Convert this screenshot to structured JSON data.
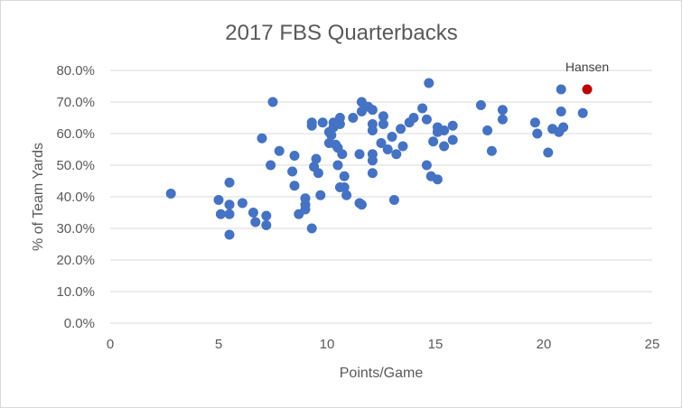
{
  "chart_data": {
    "type": "scatter",
    "title": "2017 FBS Quarterbacks",
    "xlabel": "Points/Game",
    "ylabel": "% of Team Yards",
    "xlim": [
      0,
      25
    ],
    "ylim": [
      0,
      0.8
    ],
    "x_ticks": [
      "0",
      "5",
      "10",
      "15",
      "20",
      "25"
    ],
    "y_ticks": [
      "0.0%",
      "10.0%",
      "20.0%",
      "30.0%",
      "40.0%",
      "50.0%",
      "60.0%",
      "70.0%",
      "80.0%"
    ],
    "grid": "horizontal",
    "series_color": "#4472c4",
    "highlight_color": "#c00000",
    "highlight": {
      "label": "Hansen",
      "x": 22.0,
      "y": 0.74
    },
    "points": [
      [
        2.8,
        0.41
      ],
      [
        5.0,
        0.39
      ],
      [
        5.1,
        0.345
      ],
      [
        5.5,
        0.445
      ],
      [
        5.5,
        0.375
      ],
      [
        5.5,
        0.345
      ],
      [
        5.5,
        0.28
      ],
      [
        6.1,
        0.38
      ],
      [
        6.6,
        0.35
      ],
      [
        6.7,
        0.32
      ],
      [
        7.0,
        0.585
      ],
      [
        7.2,
        0.31
      ],
      [
        7.2,
        0.34
      ],
      [
        7.4,
        0.5
      ],
      [
        7.5,
        0.7
      ],
      [
        7.8,
        0.545
      ],
      [
        8.4,
        0.48
      ],
      [
        8.5,
        0.435
      ],
      [
        8.5,
        0.53
      ],
      [
        8.7,
        0.345
      ],
      [
        9.0,
        0.395
      ],
      [
        9.0,
        0.375
      ],
      [
        9.0,
        0.36
      ],
      [
        9.3,
        0.635
      ],
      [
        9.3,
        0.625
      ],
      [
        9.3,
        0.3
      ],
      [
        9.4,
        0.495
      ],
      [
        9.5,
        0.52
      ],
      [
        9.6,
        0.475
      ],
      [
        9.7,
        0.405
      ],
      [
        9.8,
        0.635
      ],
      [
        10.1,
        0.605
      ],
      [
        10.1,
        0.57
      ],
      [
        10.2,
        0.595
      ],
      [
        10.3,
        0.635
      ],
      [
        10.3,
        0.62
      ],
      [
        10.4,
        0.565
      ],
      [
        10.5,
        0.555
      ],
      [
        10.5,
        0.5
      ],
      [
        10.6,
        0.65
      ],
      [
        10.6,
        0.63
      ],
      [
        10.6,
        0.43
      ],
      [
        10.7,
        0.535
      ],
      [
        10.8,
        0.465
      ],
      [
        10.8,
        0.43
      ],
      [
        10.9,
        0.405
      ],
      [
        11.2,
        0.65
      ],
      [
        11.5,
        0.535
      ],
      [
        11.5,
        0.38
      ],
      [
        11.6,
        0.375
      ],
      [
        11.6,
        0.7
      ],
      [
        11.6,
        0.67
      ],
      [
        11.9,
        0.685
      ],
      [
        12.1,
        0.675
      ],
      [
        12.1,
        0.63
      ],
      [
        12.1,
        0.61
      ],
      [
        12.1,
        0.535
      ],
      [
        12.1,
        0.515
      ],
      [
        12.1,
        0.475
      ],
      [
        12.5,
        0.57
      ],
      [
        12.6,
        0.655
      ],
      [
        12.6,
        0.63
      ],
      [
        12.8,
        0.55
      ],
      [
        13.0,
        0.59
      ],
      [
        13.1,
        0.39
      ],
      [
        13.2,
        0.535
      ],
      [
        13.4,
        0.615
      ],
      [
        13.5,
        0.56
      ],
      [
        13.8,
        0.635
      ],
      [
        14.0,
        0.65
      ],
      [
        14.4,
        0.68
      ],
      [
        14.6,
        0.645
      ],
      [
        14.6,
        0.5
      ],
      [
        14.7,
        0.76
      ],
      [
        14.8,
        0.465
      ],
      [
        14.9,
        0.575
      ],
      [
        15.1,
        0.62
      ],
      [
        15.1,
        0.605
      ],
      [
        15.1,
        0.455
      ],
      [
        15.4,
        0.61
      ],
      [
        15.4,
        0.56
      ],
      [
        15.8,
        0.625
      ],
      [
        15.8,
        0.58
      ],
      [
        17.1,
        0.69
      ],
      [
        17.4,
        0.61
      ],
      [
        17.6,
        0.545
      ],
      [
        18.1,
        0.675
      ],
      [
        18.1,
        0.645
      ],
      [
        19.6,
        0.635
      ],
      [
        19.7,
        0.6
      ],
      [
        20.2,
        0.54
      ],
      [
        20.4,
        0.615
      ],
      [
        20.7,
        0.605
      ],
      [
        20.8,
        0.74
      ],
      [
        20.8,
        0.67
      ],
      [
        20.9,
        0.62
      ],
      [
        21.8,
        0.665
      ]
    ]
  }
}
